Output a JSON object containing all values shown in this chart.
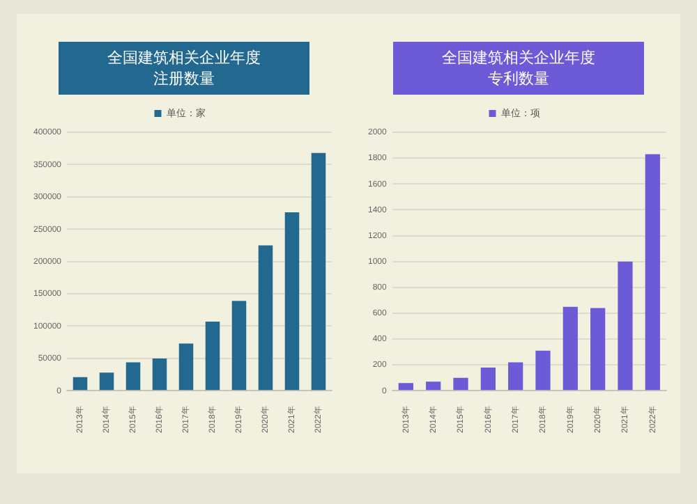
{
  "chart_data": [
    {
      "type": "bar",
      "title": "全国建筑相关企业年度注册数量",
      "categories": [
        "2013年",
        "2014年",
        "2015年",
        "2016年",
        "2017年",
        "2018年",
        "2019年",
        "2020年",
        "2021年",
        "2022年"
      ],
      "series": [
        {
          "name": "单位：家",
          "color": "#22688f",
          "values": [
            21000,
            28000,
            44000,
            50000,
            73000,
            107000,
            139000,
            225000,
            276000,
            368000
          ]
        }
      ],
      "ylim": [
        0,
        400000
      ],
      "yticks": [
        0,
        50000,
        100000,
        150000,
        200000,
        250000,
        300000,
        350000,
        400000
      ],
      "grid": "y",
      "legend": "top"
    },
    {
      "type": "bar",
      "title": "全国建筑相关企业年度专利数量",
      "categories": [
        "2013年",
        "2014年",
        "2015年",
        "2016年",
        "2017年",
        "2018年",
        "2019年",
        "2020年",
        "2021年",
        "2022年"
      ],
      "series": [
        {
          "name": "单位：项",
          "color": "#6c5ad6",
          "values": [
            60,
            70,
            100,
            180,
            220,
            310,
            650,
            640,
            1000,
            1830
          ]
        }
      ],
      "ylim": [
        0,
        2000
      ],
      "yticks": [
        0,
        200,
        400,
        600,
        800,
        1000,
        1200,
        1400,
        1600,
        1800,
        2000
      ],
      "grid": "y",
      "legend": "top"
    }
  ]
}
